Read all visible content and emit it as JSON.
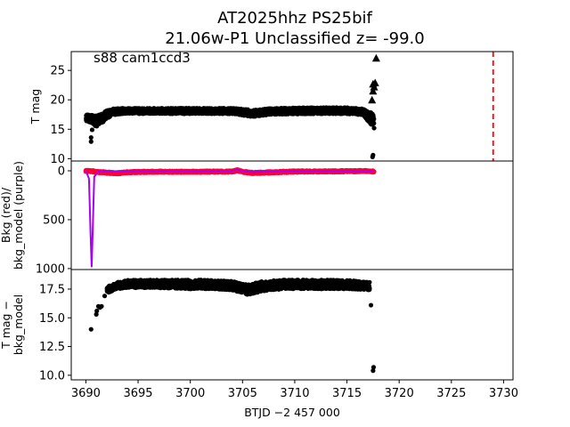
{
  "chart_data": {
    "type": "scatter",
    "title_line1": "AT2025hhz  PS25bif",
    "title_line2": "21.06w-P1 Unclassified z= -99.0",
    "xlabel": "BTJD −2 457 000",
    "xlim": [
      3688.6,
      3730.9
    ],
    "xticks": [
      "3690",
      "3695",
      "3700",
      "3705",
      "3710",
      "3715",
      "3720",
      "3725",
      "3730"
    ],
    "xtick_values": [
      3690,
      3695,
      3700,
      3705,
      3710,
      3715,
      3720,
      3725,
      3730
    ],
    "panels": [
      {
        "name": "magnitude",
        "ylabel": "T mag",
        "ylim": [
          28.2,
          9.6
        ],
        "yticks": [
          "10",
          "15",
          "20",
          "25"
        ],
        "ytick_values": [
          10,
          15,
          20,
          25
        ],
        "annotation": "s88 cam1ccd3",
        "band": {
          "color": "#000000",
          "segments": [
            {
              "x": [
                3690.0,
                3690.6,
                3691.0,
                3691.5,
                3692.0,
                3692.6,
                3693.5,
                3695.0,
                3700.0,
                3704.0,
                3706.0,
                3708.0,
                3712.0,
                3715.0,
                3716.5,
                3717.3,
                3717.6
              ],
              "lo": [
                16.3,
                16.0,
                15.3,
                15.9,
                16.8,
                17.4,
                17.6,
                17.6,
                17.6,
                17.6,
                17.1,
                17.5,
                17.6,
                17.6,
                17.4,
                15.8,
                15.5
              ],
              "hi": [
                17.5,
                17.4,
                17.3,
                17.6,
                18.2,
                18.5,
                18.6,
                18.6,
                18.6,
                18.6,
                18.3,
                18.6,
                18.7,
                18.7,
                18.5,
                17.9,
                17.5
              ]
            }
          ]
        },
        "points": {
          "color": "#000000",
          "x": [
            3690.5,
            3690.5,
            3690.6,
            3717.45,
            3717.5,
            3717.6,
            3717.4,
            3717.55
          ],
          "y": [
            12.9,
            13.6,
            14.9,
            10.3,
            10.6,
            15.2,
            16.4,
            16.9
          ]
        },
        "upper_limits": {
          "marker": "triangle",
          "color": "#000000",
          "x": [
            3717.4,
            3717.5,
            3717.6,
            3717.5,
            3717.7,
            3717.8
          ],
          "y": [
            20.0,
            21.5,
            22.2,
            22.7,
            22.9,
            27.1
          ]
        },
        "vline": {
          "x": 3729.0,
          "color": "#ff0000",
          "style": "dashed"
        }
      },
      {
        "name": "background",
        "ylabel_line1": "Bkg (red)/",
        "ylabel_line2": "bkg_model (purple)",
        "ylim": [
          -100,
          1010
        ],
        "yticks": [
          "0",
          "500",
          "1000"
        ],
        "ytick_values": [
          0,
          500,
          1000
        ],
        "bkg": {
          "color": "#ff0033",
          "x": [
            3690.0,
            3690.5,
            3691.0,
            3692.0,
            3693.0,
            3694.0,
            3696.0,
            3700.0,
            3704.0,
            3704.5,
            3705.0,
            3706.0,
            3708.0,
            3710.0,
            3712.0,
            3715.0,
            3717.0,
            3717.6
          ],
          "y": [
            0,
            3,
            10,
            20,
            25,
            15,
            10,
            10,
            8,
            -5,
            10,
            22,
            15,
            8,
            6,
            5,
            2,
            8
          ]
        },
        "bkg_model": {
          "color": "#aa00ee",
          "x": [
            3690.0,
            3690.3,
            3690.45,
            3690.55,
            3690.65,
            3690.8,
            3691.2,
            3692.0,
            3695.0,
            3700.0,
            3704.0,
            3704.5,
            3705.0,
            3706.0,
            3710.0,
            3715.0,
            3717.6
          ],
          "y": [
            0,
            80,
            650,
            985,
            650,
            60,
            8,
            5,
            5,
            5,
            3,
            -12,
            5,
            12,
            5,
            3,
            3
          ]
        }
      },
      {
        "name": "difference",
        "ylabel_line1": "T mag −",
        "ylabel_line2": "bkg_model",
        "ylim": [
          19.2,
          9.6
        ],
        "yticks": [
          "10.0",
          "12.5",
          "15.0",
          "17.5"
        ],
        "ytick_values": [
          10.0,
          12.5,
          15.0,
          17.5
        ],
        "band": {
          "color": "#000000",
          "segments": [
            {
              "x": [
                3692.0,
                3693.0,
                3694.0,
                3696.0,
                3700.0,
                3702.0,
                3704.0,
                3705.5,
                3707.0,
                3709.0,
                3712.0,
                3715.0,
                3717.2
              ],
              "lo": [
                17.1,
                17.5,
                17.6,
                17.6,
                17.5,
                17.5,
                17.4,
                17.0,
                17.3,
                17.5,
                17.5,
                17.5,
                17.4
              ],
              "hi": [
                17.7,
                18.1,
                18.3,
                18.3,
                18.3,
                18.3,
                18.2,
                17.9,
                18.2,
                18.3,
                18.3,
                18.3,
                18.1
              ]
            }
          ]
        },
        "points": {
          "color": "#000000",
          "x": [
            3690.5,
            3691.0,
            3691.05,
            3691.2,
            3691.35,
            3691.5,
            3691.8,
            3717.3,
            3717.5,
            3717.55
          ],
          "y": [
            14.0,
            15.3,
            15.6,
            16.0,
            15.9,
            16.0,
            16.9,
            16.1,
            10.4,
            10.7
          ]
        }
      }
    ]
  }
}
